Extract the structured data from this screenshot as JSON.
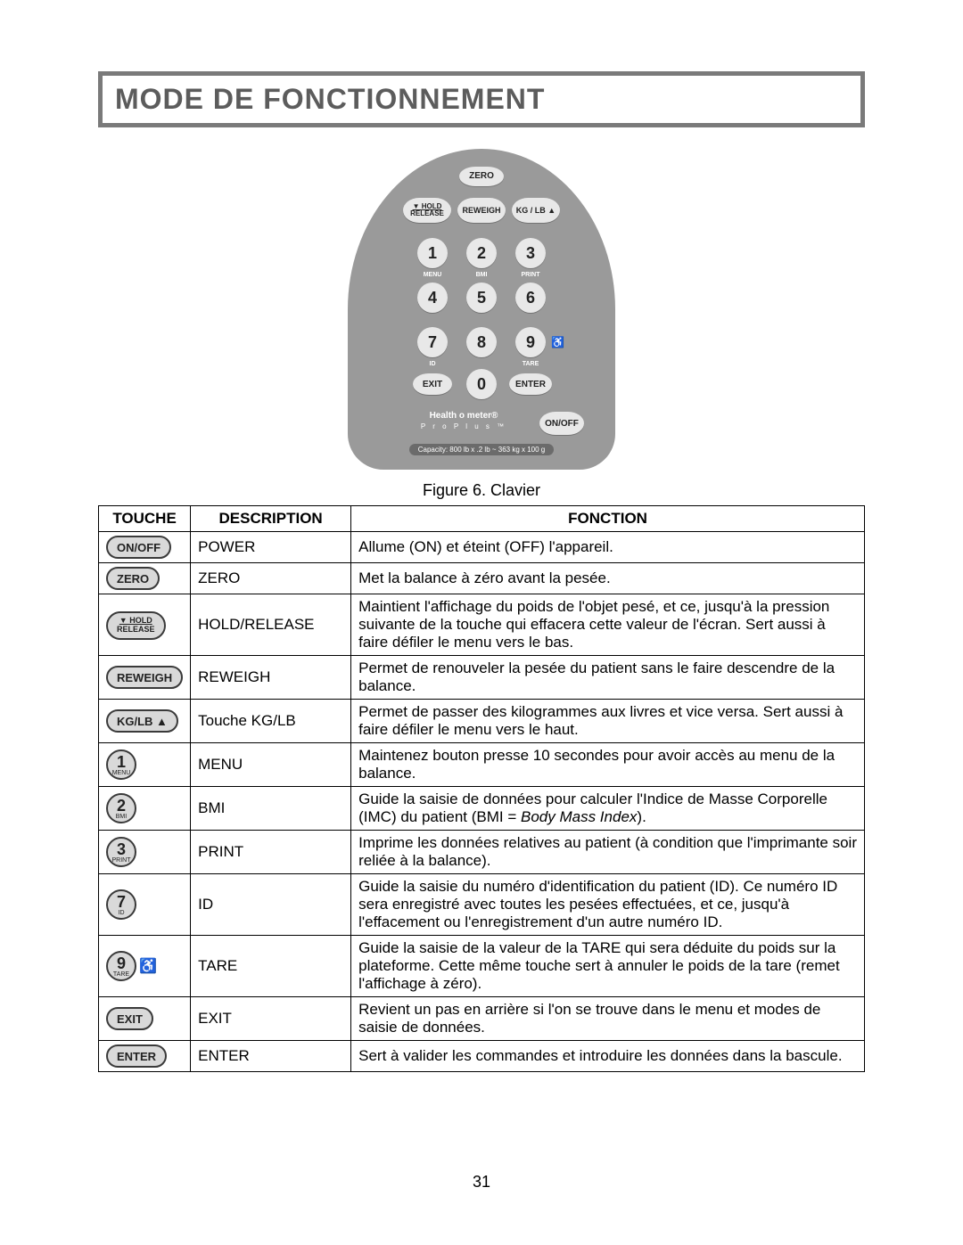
{
  "title": "MODE DE FONCTIONNEMENT",
  "keypad": {
    "zero": "ZERO",
    "hold": "HOLD",
    "release": "RELEASE",
    "reweigh": "REWEIGH",
    "kglb": "KG / LB ▲",
    "nums": {
      "1": "1",
      "2": "2",
      "3": "3",
      "4": "4",
      "5": "5",
      "6": "6",
      "7": "7",
      "8": "8",
      "9": "9",
      "0": "0"
    },
    "subs": {
      "1": "MENU",
      "2": "BMI",
      "3": "PRINT",
      "7": "ID",
      "9": "TARE"
    },
    "exit": "EXIT",
    "enter": "ENTER",
    "onoff": "ON/OFF",
    "brand_top": "Health o meter®",
    "brand_sub": "P r o   P l u s ™",
    "capacity": "Capacity: 800 lb x .2 lb ~ 363 kg x 100 g"
  },
  "caption": "Figure 6. Clavier",
  "headers": {
    "touche": "TOUCHE",
    "description": "DESCRIPTION",
    "fonction": "FONCTION"
  },
  "rows": [
    {
      "icon_type": "oval",
      "icon_label": "ON/OFF",
      "desc": "POWER",
      "func": "Allume (ON) et éteint (OFF) l'appareil."
    },
    {
      "icon_type": "oval",
      "icon_label": "ZERO",
      "desc": "ZERO",
      "func": "Met la balance à zéro avant la pesée."
    },
    {
      "icon_type": "oval-stack",
      "icon_top": "▼ HOLD",
      "icon_bottom": "RELEASE",
      "desc": "HOLD/RELEASE",
      "func": "Maintient l'affichage du poids de l'objet pesé, et ce, jusqu'à la pression suivante de la touche qui effacera cette valeur de l'écran. Sert aussi à faire défiler le menu vers le bas."
    },
    {
      "icon_type": "oval",
      "icon_label": "REWEIGH",
      "desc": "REWEIGH",
      "func": "Permet de renouveler la pesée du patient sans le faire descendre de la balance."
    },
    {
      "icon_type": "oval",
      "icon_label": "KG/LB ▲",
      "desc": "Touche KG/LB",
      "func": "Permet de passer des kilogrammes aux livres et vice versa. Sert aussi à faire défiler le menu vers le haut."
    },
    {
      "icon_type": "num",
      "icon_num": "1",
      "icon_sub": "MENU",
      "desc": "MENU",
      "func": "Maintenez bouton presse 10 secondes pour avoir accès au menu de la balance."
    },
    {
      "icon_type": "num",
      "icon_num": "2",
      "icon_sub": "BMI",
      "desc": "BMI",
      "func_html": "Guide la saisie de données pour calculer l'Indice de Masse Corporelle (IMC) du patient (BMI = <span class='italic'>Body Mass Index</span>)."
    },
    {
      "icon_type": "num",
      "icon_num": "3",
      "icon_sub": "PRINT",
      "desc": "PRINT",
      "func": "Imprime les données relatives au patient (à condition que l'imprimante soir reliée à la balance)."
    },
    {
      "icon_type": "num",
      "icon_num": "7",
      "icon_sub": "ID",
      "desc": "ID",
      "func": "Guide la saisie du numéro d'identification du patient (ID). Ce numéro ID sera enregistré avec toutes les pesées effectuées, et ce, jusqu'à l'effacement ou l'enregistrement d'un autre numéro ID."
    },
    {
      "icon_type": "num-wheel",
      "icon_num": "9",
      "icon_sub": "TARE",
      "desc": "TARE",
      "func": "Guide la saisie de la valeur de la TARE qui sera déduite du poids sur la plateforme. Cette même touche sert à annuler le poids de la tare (remet l'affichage à zéro)."
    },
    {
      "icon_type": "oval",
      "icon_label": "EXIT",
      "desc": "EXIT",
      "func": "Revient un pas en arrière si l'on se trouve dans le menu et modes de saisie de données."
    },
    {
      "icon_type": "oval",
      "icon_label": "ENTER",
      "desc": "ENTER",
      "func": "Sert à valider les commandes et introduire les données dans la bascule."
    }
  ],
  "page_number": "31"
}
